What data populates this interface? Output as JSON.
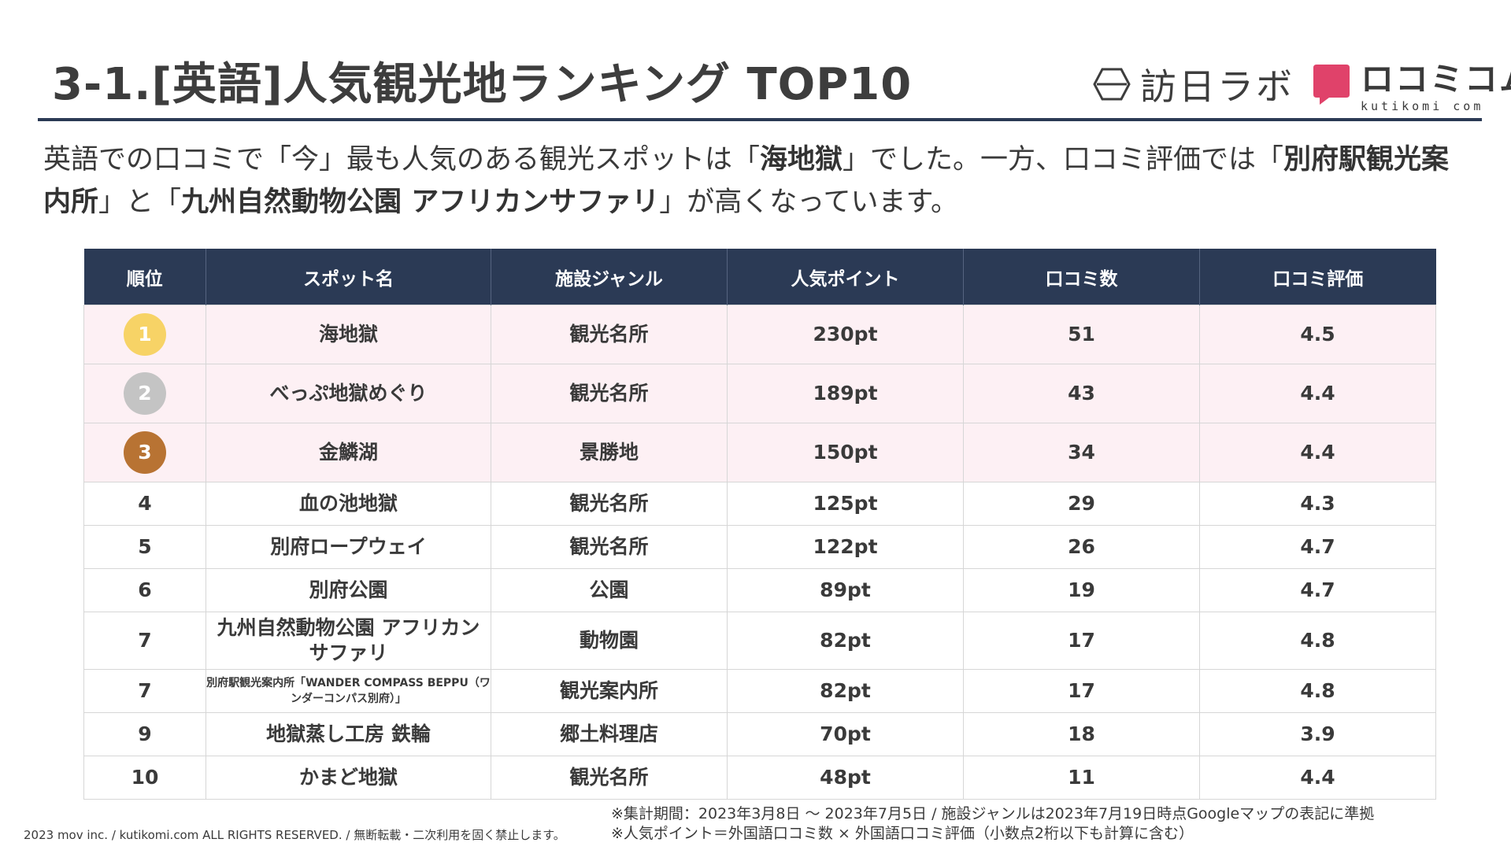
{
  "slide": {
    "title": "3-1.[英語]人気観光地ランキング TOP10"
  },
  "logos": {
    "houjin_lab": "訪日ラボ",
    "kutikomi_main": "ロコミコム",
    "kutikomi_sub": "kutikomi com",
    "kutikomi_color": "#e0426a"
  },
  "summary": {
    "part1": "英語での口コミで「今」最も人気のある観光スポットは「",
    "bold1": "海地獄",
    "part2": "」でした。一方、口コミ評価では「",
    "bold2": "別府駅観光案内所",
    "part3": "」と「",
    "bold3": "九州自然動物公園 アフリカンサファリ",
    "part4": "」が高くなっています。"
  },
  "table": {
    "headers": [
      "順位",
      "スポット名",
      "施設ジャンル",
      "人気ポイント",
      "口コミ数",
      "口コミ評価"
    ],
    "rows": [
      {
        "rank": "1",
        "name": "海地獄",
        "genre": "観光名所",
        "points": "230pt",
        "reviews": "51",
        "rating": "4.5",
        "medal_color": "#f7d366"
      },
      {
        "rank": "2",
        "name": "べっぷ地獄めぐり",
        "genre": "観光名所",
        "points": "189pt",
        "reviews": "43",
        "rating": "4.4",
        "medal_color": "#c4c4c4"
      },
      {
        "rank": "3",
        "name": "金鱗湖",
        "genre": "景勝地",
        "points": "150pt",
        "reviews": "34",
        "rating": "4.4",
        "medal_color": "#b87333"
      },
      {
        "rank": "4",
        "name": "血の池地獄",
        "genre": "観光名所",
        "points": "125pt",
        "reviews": "29",
        "rating": "4.3"
      },
      {
        "rank": "5",
        "name": "別府ロープウェイ",
        "genre": "観光名所",
        "points": "122pt",
        "reviews": "26",
        "rating": "4.7"
      },
      {
        "rank": "6",
        "name": "別府公園",
        "genre": "公園",
        "points": "89pt",
        "reviews": "19",
        "rating": "4.7"
      },
      {
        "rank": "7",
        "name_line1": "九州自然動物公園 アフリカン",
        "name_line2": "サファリ",
        "genre": "動物園",
        "points": "82pt",
        "reviews": "17",
        "rating": "4.8"
      },
      {
        "rank": "7",
        "name_line1": "別府駅観光案内所「WANDER COMPASS BEPPU（ワ",
        "name_line2": "ンダーコンパス別府）」",
        "genre": "観光案内所",
        "points": "82pt",
        "reviews": "17",
        "rating": "4.8"
      },
      {
        "rank": "9",
        "name": "地獄蒸し工房 鉄輪",
        "genre": "郷土料理店",
        "points": "70pt",
        "reviews": "18",
        "rating": "3.9"
      },
      {
        "rank": "10",
        "name": "かまど地獄",
        "genre": "観光名所",
        "points": "48pt",
        "reviews": "11",
        "rating": "4.4"
      }
    ]
  },
  "footer": {
    "copyright": "2023 mov inc. / kutikomi.com ALL RIGHTS RESERVED. / 無断転載・二次利用を固く禁止します。",
    "note1": "※集計期間：2023年3月8日 〜 2023年7月5日 / 施設ジャンルは2023年7月19日時点Googleマップの表記に準拠",
    "note2": "※人気ポイント＝外国語口コミ数 × 外国語口コミ評価（小数点2桁以下も計算に含む）"
  },
  "colors": {
    "header_bg": "#2b3a55",
    "top3_bg": "#fdf0f4",
    "title_rule": "#2b3a55"
  }
}
